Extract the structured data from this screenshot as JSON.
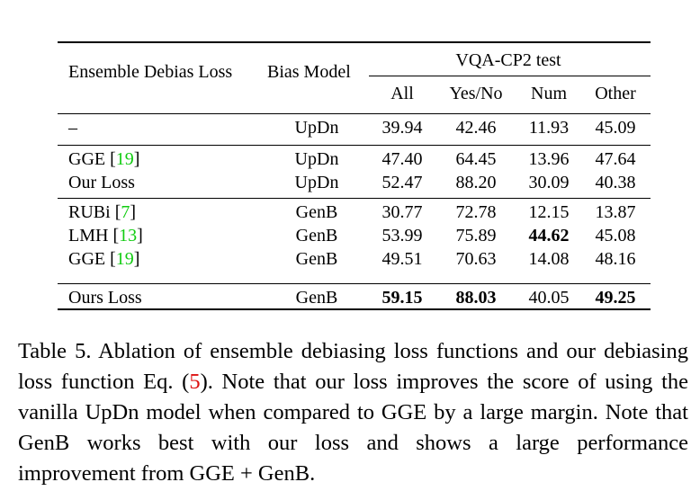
{
  "table": {
    "header": {
      "col1": "Ensemble Debias Loss",
      "col2": "Bias Model",
      "group": "VQA-CP2 test",
      "sub": [
        "All",
        "Yes/No",
        "Num",
        "Other"
      ]
    },
    "rows": [
      {
        "loss": "–",
        "ref": "",
        "bias": "UpDn",
        "vals": [
          "39.94",
          "42.46",
          "11.93",
          "45.09"
        ],
        "bold": [
          false,
          false,
          false,
          false
        ]
      },
      {
        "loss": "GGE ",
        "ref": "19",
        "bias": "UpDn",
        "vals": [
          "47.40",
          "64.45",
          "13.96",
          "47.64"
        ],
        "bold": [
          false,
          false,
          false,
          false
        ]
      },
      {
        "loss": "Our Loss",
        "ref": "",
        "bias": "UpDn",
        "vals": [
          "52.47",
          "88.20",
          "30.09",
          "40.38"
        ],
        "bold": [
          false,
          false,
          false,
          false
        ]
      },
      {
        "loss": "RUBi ",
        "ref": "7",
        "bias": "GenB",
        "vals": [
          "30.77",
          "72.78",
          "12.15",
          "13.87"
        ],
        "bold": [
          false,
          false,
          false,
          false
        ]
      },
      {
        "loss": "LMH ",
        "ref": "13",
        "bias": "GenB",
        "vals": [
          "53.99",
          "75.89",
          "44.62",
          "45.08"
        ],
        "bold": [
          false,
          false,
          true,
          false
        ]
      },
      {
        "loss": "GGE ",
        "ref": "19",
        "bias": "GenB",
        "vals": [
          "49.51",
          "70.63",
          "14.08",
          "48.16"
        ],
        "bold": [
          false,
          false,
          false,
          false
        ]
      },
      {
        "loss": "Ours Loss",
        "ref": "",
        "bias": "GenB",
        "vals": [
          "59.15",
          "88.03",
          "40.05",
          "49.25"
        ],
        "bold": [
          true,
          true,
          false,
          true
        ]
      }
    ]
  },
  "caption": {
    "prefix": "Table 5.  Ablation of ensemble debiasing loss functions and our debiasing loss function Eq. (",
    "eq_ref": "5",
    "suffix": ").  Note that our loss improves the score of using the vanilla UpDn model when compared to GGE by a large margin.  Note that GenB works best with our loss and shows a large performance improvement from GGE + GenB."
  },
  "colors": {
    "citation": "#11cc11",
    "equation_ref": "#dd1111"
  }
}
